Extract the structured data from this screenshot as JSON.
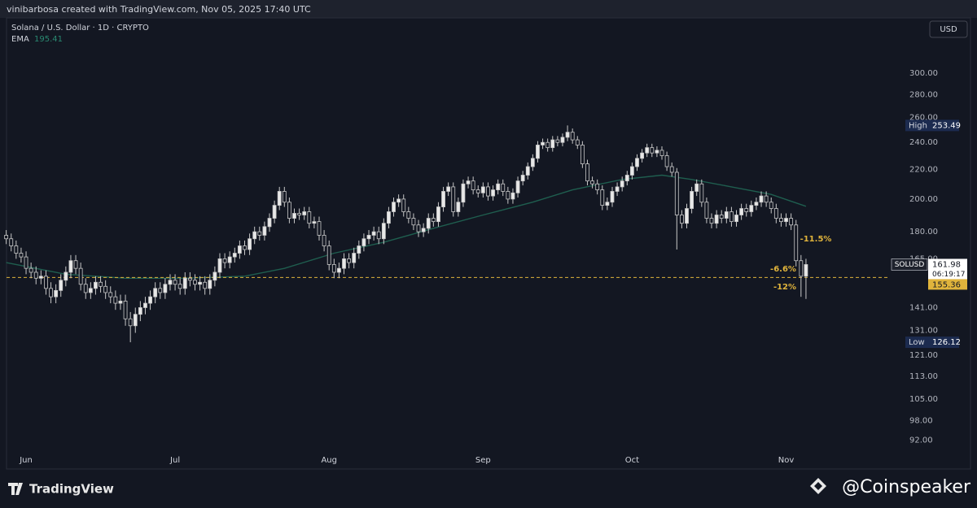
{
  "header": "vinibarbosa created with TradingView.com, Nov 05, 2025 17:40 UTC",
  "chart_data": {
    "type": "candlestick",
    "title": "Solana / U.S. Dollar · 1D · CRYPTO",
    "currency": "USD",
    "log_scale": true,
    "grid": false,
    "up_color": "#e8e8e8",
    "down_color": "#131722",
    "ylim": [
      89.3,
      358.4
    ],
    "xlim": [
      -1.25,
      177.4
    ],
    "yticks": [
      {
        "value": 300,
        "label": "300.00"
      },
      {
        "value": 280,
        "label": "280.00"
      },
      {
        "value": 260,
        "label": "260.00"
      },
      {
        "value": 240,
        "label": "240.00"
      },
      {
        "value": 220,
        "label": "220.00"
      },
      {
        "value": 200,
        "label": "200.00"
      },
      {
        "value": 180,
        "label": "180.00"
      },
      {
        "value": 165,
        "label": "165.00"
      },
      {
        "value": 141,
        "label": "141.00"
      },
      {
        "value": 131,
        "label": "131.00"
      },
      {
        "value": 121,
        "label": "121.00"
      },
      {
        "value": 113,
        "label": "113.00"
      },
      {
        "value": 105,
        "label": "105.00"
      },
      {
        "value": 98,
        "label": "98.00"
      },
      {
        "value": 92,
        "label": "92.00"
      }
    ],
    "xticks": [
      {
        "value": 4,
        "label": "Jun"
      },
      {
        "value": 34,
        "label": "Jul"
      },
      {
        "value": 65,
        "label": "Aug"
      },
      {
        "value": 96,
        "label": "Sep"
      },
      {
        "value": 126,
        "label": "Oct"
      },
      {
        "value": 157,
        "label": "Nov"
      }
    ],
    "open": [
      178,
      176,
      172,
      168,
      166,
      160,
      158,
      155,
      156,
      150,
      146,
      149,
      154,
      158,
      164,
      160,
      152,
      148,
      150,
      153,
      151,
      148,
      146,
      143,
      144,
      136,
      133,
      138,
      141,
      143,
      146,
      150,
      148,
      152,
      154,
      152,
      150,
      155,
      154,
      152,
      153,
      150,
      154,
      158,
      165,
      163,
      166,
      168,
      172,
      170,
      176,
      180,
      178,
      183,
      188,
      196,
      205,
      198,
      188,
      191,
      190,
      192,
      185,
      186,
      178,
      172,
      162,
      158,
      160,
      165,
      163,
      168,
      172,
      176,
      178,
      180,
      176,
      185,
      192,
      198,
      200,
      192,
      188,
      184,
      180,
      182,
      188,
      186,
      195,
      205,
      208,
      192,
      198,
      210,
      212,
      206,
      204,
      208,
      202,
      206,
      210,
      205,
      200,
      204,
      212,
      216,
      222,
      228,
      238,
      240,
      236,
      242,
      240,
      244,
      248,
      242,
      238,
      224,
      212,
      210,
      206,
      196,
      198,
      205,
      208,
      212,
      216,
      222,
      228,
      232,
      236,
      232,
      234,
      230,
      222,
      218,
      190,
      185,
      194,
      205,
      210,
      198,
      188,
      185,
      190,
      188,
      192,
      186,
      190,
      194,
      192,
      196,
      198,
      202,
      198,
      194,
      188,
      186,
      188,
      184,
      164,
      156
    ],
    "high": [
      181,
      179,
      175,
      171,
      169,
      163,
      161,
      159,
      159,
      153,
      152,
      157,
      161,
      167,
      167,
      163,
      155,
      153,
      156,
      156,
      154,
      151,
      149,
      147,
      147,
      139,
      141,
      144,
      146,
      149,
      153,
      153,
      155,
      157,
      157,
      155,
      158,
      158,
      157,
      156,
      156,
      157,
      161,
      168,
      168,
      169,
      171,
      175,
      175,
      179,
      183,
      183,
      186,
      191,
      199,
      208,
      208,
      201,
      194,
      194,
      195,
      195,
      189,
      189,
      181,
      175,
      165,
      163,
      168,
      168,
      171,
      175,
      179,
      181,
      183,
      183,
      188,
      195,
      201,
      203,
      203,
      195,
      191,
      187,
      185,
      191,
      191,
      198,
      208,
      211,
      211,
      201,
      213,
      215,
      215,
      209,
      211,
      211,
      209,
      213,
      213,
      208,
      207,
      215,
      219,
      225,
      231,
      241,
      243,
      243,
      245,
      245,
      247,
      253.49,
      251,
      245,
      241,
      227,
      215,
      213,
      209,
      201,
      208,
      211,
      215,
      219,
      225,
      231,
      235,
      239,
      239,
      237,
      237,
      233,
      225,
      221,
      193,
      197,
      208,
      213,
      213,
      201,
      191,
      193,
      193,
      195,
      195,
      193,
      197,
      197,
      199,
      201,
      205,
      205,
      201,
      197,
      191,
      191,
      191,
      187,
      167,
      165
    ],
    "low": [
      173,
      169,
      165,
      163,
      157,
      155,
      152,
      152,
      147,
      143,
      143,
      146,
      151,
      155,
      157,
      149,
      145,
      145,
      147,
      148,
      145,
      143,
      140,
      140,
      133,
      126.12,
      130,
      135,
      138,
      140,
      143,
      145,
      145,
      149,
      149,
      147,
      147,
      151,
      149,
      149,
      147,
      147,
      151,
      155,
      160,
      160,
      163,
      165,
      167,
      167,
      173,
      175,
      175,
      180,
      185,
      193,
      195,
      185,
      185,
      187,
      187,
      182,
      182,
      175,
      169,
      159,
      155,
      155,
      157,
      160,
      160,
      165,
      169,
      173,
      175,
      173,
      173,
      182,
      189,
      195,
      189,
      185,
      181,
      177,
      177,
      179,
      183,
      183,
      192,
      202,
      189,
      189,
      195,
      207,
      203,
      201,
      201,
      199,
      199,
      203,
      202,
      197,
      197,
      201,
      209,
      213,
      219,
      225,
      235,
      233,
      233,
      237,
      237,
      241,
      239,
      235,
      221,
      209,
      207,
      203,
      193,
      193,
      195,
      202,
      205,
      209,
      213,
      219,
      225,
      229,
      229,
      229,
      227,
      219,
      215,
      170,
      182,
      182,
      191,
      202,
      195,
      185,
      182,
      182,
      185,
      185,
      183,
      183,
      187,
      189,
      189,
      193,
      195,
      195,
      191,
      185,
      183,
      183,
      181,
      161,
      146,
      145
    ],
    "close": [
      176,
      172,
      168,
      166,
      160,
      158,
      155,
      156,
      150,
      146,
      149,
      154,
      158,
      164,
      160,
      152,
      148,
      150,
      153,
      151,
      148,
      146,
      143,
      144,
      136,
      133,
      138,
      141,
      143,
      146,
      150,
      148,
      152,
      154,
      152,
      150,
      155,
      154,
      152,
      153,
      150,
      154,
      158,
      165,
      163,
      166,
      168,
      172,
      170,
      176,
      180,
      178,
      183,
      188,
      196,
      205,
      198,
      188,
      191,
      190,
      192,
      185,
      186,
      178,
      172,
      162,
      158,
      160,
      165,
      163,
      168,
      172,
      176,
      178,
      180,
      176,
      185,
      192,
      198,
      200,
      192,
      188,
      184,
      180,
      182,
      188,
      186,
      195,
      205,
      208,
      192,
      198,
      210,
      212,
      206,
      204,
      208,
      202,
      206,
      210,
      205,
      200,
      204,
      212,
      216,
      222,
      228,
      238,
      240,
      236,
      242,
      240,
      244,
      248,
      242,
      238,
      224,
      212,
      210,
      206,
      196,
      198,
      205,
      208,
      212,
      216,
      222,
      228,
      232,
      236,
      232,
      234,
      230,
      222,
      218,
      190,
      185,
      194,
      205,
      210,
      198,
      188,
      185,
      190,
      188,
      192,
      186,
      190,
      194,
      192,
      196,
      198,
      202,
      198,
      194,
      188,
      186,
      188,
      184,
      164,
      156,
      161.98
    ],
    "high_label": "High",
    "low_label": "Low",
    "ema": {
      "name": "EMA",
      "color": "#1f5e4f",
      "x": [
        0,
        12,
        24,
        36,
        48,
        56,
        66,
        76,
        86,
        96,
        106,
        114,
        124,
        132,
        138,
        146,
        154,
        161
      ],
      "values": [
        163,
        157,
        155,
        155,
        156,
        160,
        168,
        174,
        182,
        190,
        198,
        206,
        213,
        216,
        213,
        208,
        203,
        195.41
      ]
    },
    "symbol": "SOLUSD",
    "countdown": "06:19:17",
    "reference_line": {
      "value": 155.36,
      "color": "#e0b43c"
    },
    "annotations": [
      "-11.5%",
      "-6.6%",
      "-12%"
    ]
  },
  "footer": {
    "brand": "TradingView",
    "watermark": "@Coinspeaker"
  }
}
